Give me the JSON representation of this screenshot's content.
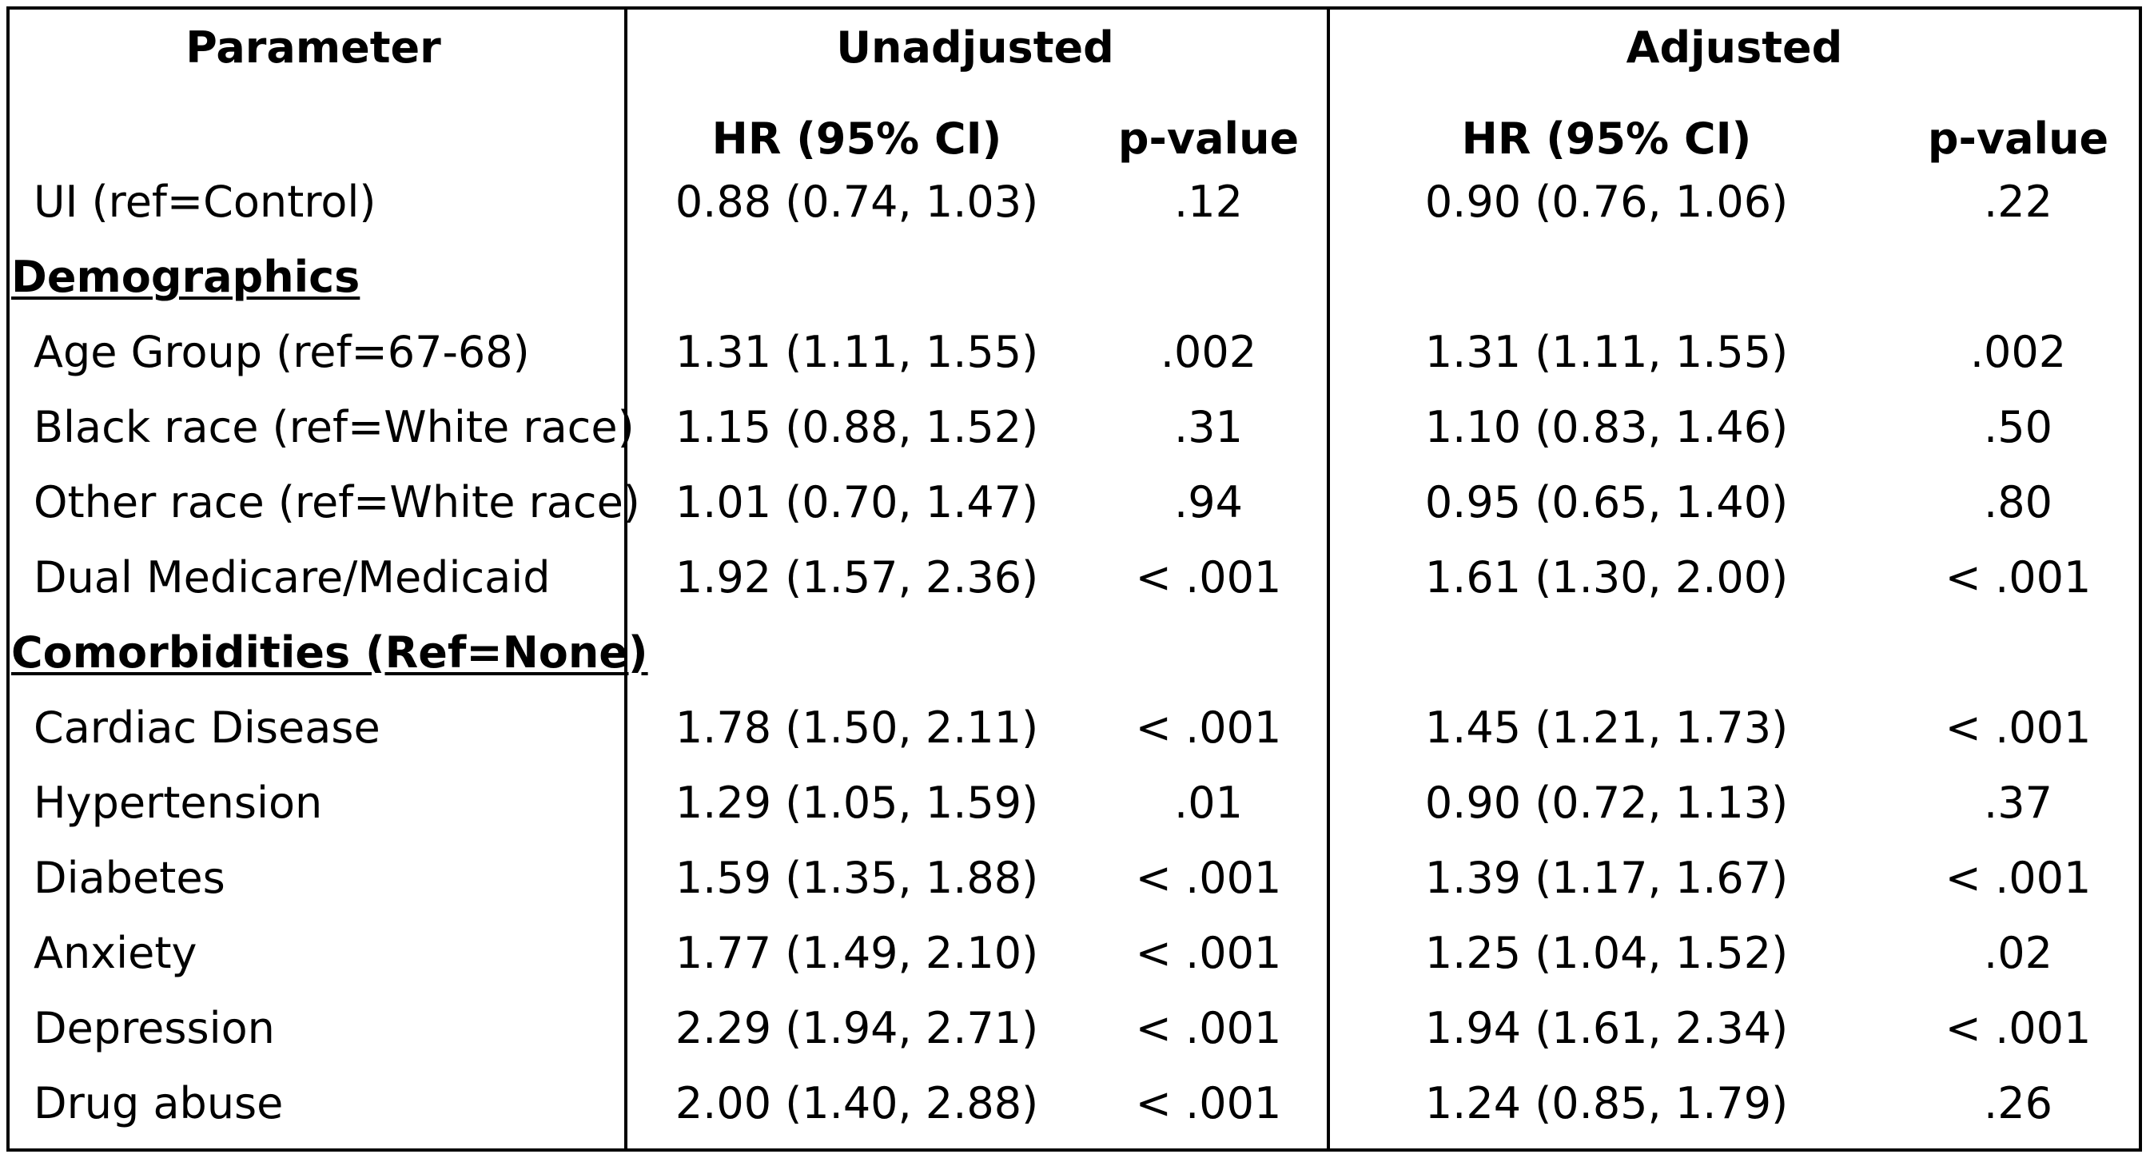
{
  "headers": {
    "parameter": "Parameter",
    "unadjusted": "Unadjusted",
    "adjusted": "Adjusted",
    "hr": "HR (95% CI)",
    "pvalue": "p-value"
  },
  "rows": [
    {
      "type": "data",
      "label": "UI (ref=Control)",
      "u_hr": "0.88 (0.74, 1.03)",
      "u_p": ".12",
      "a_hr": "0.90 (0.76, 1.06)",
      "a_p": ".22"
    },
    {
      "type": "section",
      "label": "Demographics"
    },
    {
      "type": "data",
      "label": "Age Group (ref=67-68)",
      "u_hr": "1.31 (1.11, 1.55)",
      "u_p": ".002",
      "a_hr": "1.31 (1.11, 1.55)",
      "a_p": ".002"
    },
    {
      "type": "data",
      "label": "Black race (ref=White race)",
      "u_hr": "1.15 (0.88, 1.52)",
      "u_p": ".31",
      "a_hr": "1.10 (0.83, 1.46)",
      "a_p": ".50"
    },
    {
      "type": "data",
      "label": "Other race (ref=White race)",
      "u_hr": "1.01 (0.70, 1.47)",
      "u_p": ".94",
      "a_hr": "0.95 (0.65, 1.40)",
      "a_p": ".80"
    },
    {
      "type": "data",
      "label": "Dual Medicare/Medicaid",
      "u_hr": "1.92 (1.57, 2.36)",
      "u_p": "< .001",
      "a_hr": "1.61 (1.30, 2.00)",
      "a_p": "< .001"
    },
    {
      "type": "section",
      "label": "Comorbidities (Ref=None)"
    },
    {
      "type": "data",
      "label": "Cardiac Disease",
      "u_hr": "1.78 (1.50, 2.11)",
      "u_p": "< .001",
      "a_hr": "1.45 (1.21, 1.73)",
      "a_p": "< .001"
    },
    {
      "type": "data",
      "label": "Hypertension",
      "u_hr": "1.29 (1.05, 1.59)",
      "u_p": ".01",
      "a_hr": "0.90 (0.72, 1.13)",
      "a_p": ".37"
    },
    {
      "type": "data",
      "label": "Diabetes",
      "u_hr": "1.59 (1.35, 1.88)",
      "u_p": "< .001",
      "a_hr": "1.39 (1.17, 1.67)",
      "a_p": "< .001"
    },
    {
      "type": "data",
      "label": "Anxiety",
      "u_hr": "1.77 (1.49, 2.10)",
      "u_p": "< .001",
      "a_hr": "1.25 (1.04, 1.52)",
      "a_p": ".02"
    },
    {
      "type": "data",
      "label": "Depression",
      "u_hr": "2.29 (1.94, 2.71)",
      "u_p": "< .001",
      "a_hr": "1.94 (1.61, 2.34)",
      "a_p": "< .001"
    },
    {
      "type": "data",
      "label": "Drug abuse",
      "u_hr": "2.00 (1.40, 2.88)",
      "u_p": "< .001",
      "a_hr": "1.24 (0.85, 1.79)",
      "a_p": ".26"
    }
  ]
}
